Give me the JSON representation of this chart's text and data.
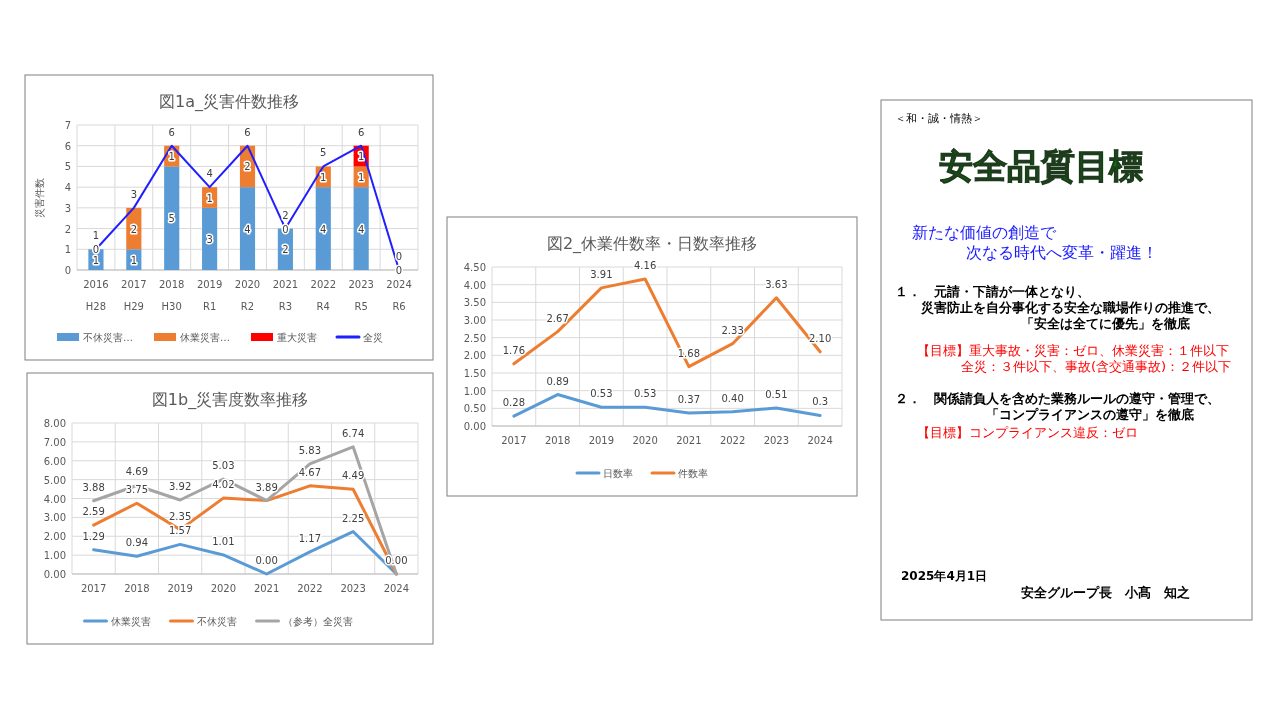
{
  "chart_data": [
    {
      "type": "bar",
      "stacked": true,
      "title": "図1a_災害件数推移",
      "ylabel": "災害件数",
      "categories": [
        "2016\nH28",
        "2017\nH29",
        "2018\nH30",
        "2019\nR1",
        "2020\nR2",
        "2021\nR3",
        "2022\nR4",
        "2023\nR5",
        "2024\nR6"
      ],
      "ylim": [
        0,
        7
      ],
      "yticks": [
        0,
        1,
        2,
        3,
        4,
        5,
        6,
        7
      ],
      "grid": true,
      "legend": "bottom",
      "series": [
        {
          "name": "不休災害…",
          "color": "#5b9bd5",
          "values": [
            1,
            1,
            5,
            3,
            4,
            2,
            4,
            4,
            0
          ],
          "value_labels": [
            "1",
            "1",
            "5",
            "3",
            "4",
            "2",
            "4",
            "4",
            "0"
          ]
        },
        {
          "name": "休業災害…",
          "color": "#ed7d31",
          "values": [
            0,
            2,
            1,
            1,
            2,
            0,
            1,
            1,
            0
          ],
          "value_labels": [
            "0",
            "2",
            "1",
            "1",
            "2",
            "0",
            "1",
            "1",
            null
          ]
        },
        {
          "name": "重大災害",
          "color": "#ff0000",
          "values": [
            0,
            0,
            0,
            0,
            0,
            0,
            0,
            1,
            0
          ],
          "value_labels": [
            null,
            null,
            null,
            null,
            null,
            null,
            null,
            "1",
            null
          ]
        },
        {
          "name": "全災",
          "type": "line",
          "color": "#1f1fff",
          "values": [
            1,
            3,
            6,
            4,
            6,
            2,
            5,
            6,
            0
          ],
          "value_labels": [
            "1",
            "3",
            "6",
            "4",
            "6",
            "2",
            "5",
            "6",
            "0"
          ]
        }
      ]
    },
    {
      "type": "line",
      "title": "図1b_災害度数率推移",
      "categories": [
        "2017",
        "2018",
        "2019",
        "2020",
        "2021",
        "2022",
        "2023",
        "2024"
      ],
      "ylim": [
        0,
        8
      ],
      "yticks": [
        {
          "value": 0,
          "label": "0.00"
        },
        {
          "value": 1,
          "label": "1.00"
        },
        {
          "value": 2,
          "label": "2.00"
        },
        {
          "value": 3,
          "label": "3.00"
        },
        {
          "value": 4,
          "label": "4.00"
        },
        {
          "value": 5,
          "label": "5.00"
        },
        {
          "value": 6,
          "label": "6.00"
        },
        {
          "value": 7,
          "label": "7.00"
        },
        {
          "value": 8,
          "label": "8.00"
        }
      ],
      "grid": true,
      "legend": "bottom",
      "series": [
        {
          "name": "休業災害",
          "color": "#5b9bd5",
          "values": [
            1.29,
            0.94,
            1.57,
            1.01,
            0.0,
            1.17,
            2.25,
            0.0
          ],
          "value_labels": [
            "1.29",
            "0.94",
            "1.57",
            "1.01",
            "0.00",
            "1.17",
            "2.25",
            "0.00"
          ]
        },
        {
          "name": "不休災害",
          "color": "#ed7d31",
          "values": [
            2.59,
            3.75,
            2.35,
            4.02,
            3.89,
            4.67,
            4.49,
            0.0
          ],
          "value_labels": [
            "2.59",
            "3.75",
            "2.35",
            "4.02",
            null,
            "4.67",
            "4.49",
            null
          ]
        },
        {
          "name": "（参考）全災害",
          "color": "#a5a5a5",
          "values": [
            3.88,
            4.69,
            3.92,
            5.03,
            3.89,
            5.83,
            6.74,
            0.0
          ],
          "value_labels": [
            "3.88",
            "4.69",
            "3.92",
            "5.03",
            "3.89",
            "5.83",
            "6.74",
            null
          ]
        }
      ]
    },
    {
      "type": "line",
      "title": "図2_休業件数率・日数率推移",
      "categories": [
        "2017",
        "2018",
        "2019",
        "2020",
        "2021",
        "2022",
        "2023",
        "2024"
      ],
      "ylim": [
        0,
        4.5
      ],
      "yticks": [
        {
          "value": 0,
          "label": "0.00"
        },
        {
          "value": 0.5,
          "label": "0.50"
        },
        {
          "value": 1,
          "label": "1.00"
        },
        {
          "value": 1.5,
          "label": "1.50"
        },
        {
          "value": 2,
          "label": "2.00"
        },
        {
          "value": 2.5,
          "label": "2.50"
        },
        {
          "value": 3,
          "label": "3.00"
        },
        {
          "value": 3.5,
          "label": "3.50"
        },
        {
          "value": 4,
          "label": "4.00"
        },
        {
          "value": 4.5,
          "label": "4.50"
        }
      ],
      "grid": true,
      "legend": "bottom",
      "series": [
        {
          "name": "日数率",
          "color": "#5b9bd5",
          "values": [
            0.28,
            0.89,
            0.53,
            0.53,
            0.37,
            0.4,
            0.51,
            0.3
          ],
          "value_labels": [
            "0.28",
            "0.89",
            "0.53",
            "0.53",
            "0.37",
            "0.40",
            "0.51",
            "0.3"
          ]
        },
        {
          "name": "件数率",
          "color": "#ed7d31",
          "values": [
            1.76,
            2.67,
            3.91,
            4.16,
            1.68,
            2.33,
            3.63,
            2.1
          ],
          "value_labels": [
            "1.76",
            "2.67",
            "3.91",
            "4.16",
            "1.68",
            "2.33",
            "3.63",
            "2.10"
          ]
        }
      ]
    },
    {
      "type": "other",
      "title": "安全品質目標",
      "annotations": [
        "＜和・誠・情熱＞",
        "新たな価値の創造で",
        "次なる時代へ変革・躍進！",
        "１．　元請・下請が一体となり、",
        "災害防止を自分事化する安全な職場作りの推進で、",
        "「安全は全てに優先」を徹底",
        "【目標】重大事故・災害：ゼロ、休業災害：１件以下",
        "全災：３件以下、事故(含交通事故)：２件以下",
        "２．　関係請負人を含めた業務ルールの遵守・管理で、",
        "「コンプライアンスの遵守」を徹底",
        "【目標】コンプライアンス違反：ゼロ",
        "2025年4月1日",
        "安全グループ長　小髙　知之"
      ]
    }
  ]
}
